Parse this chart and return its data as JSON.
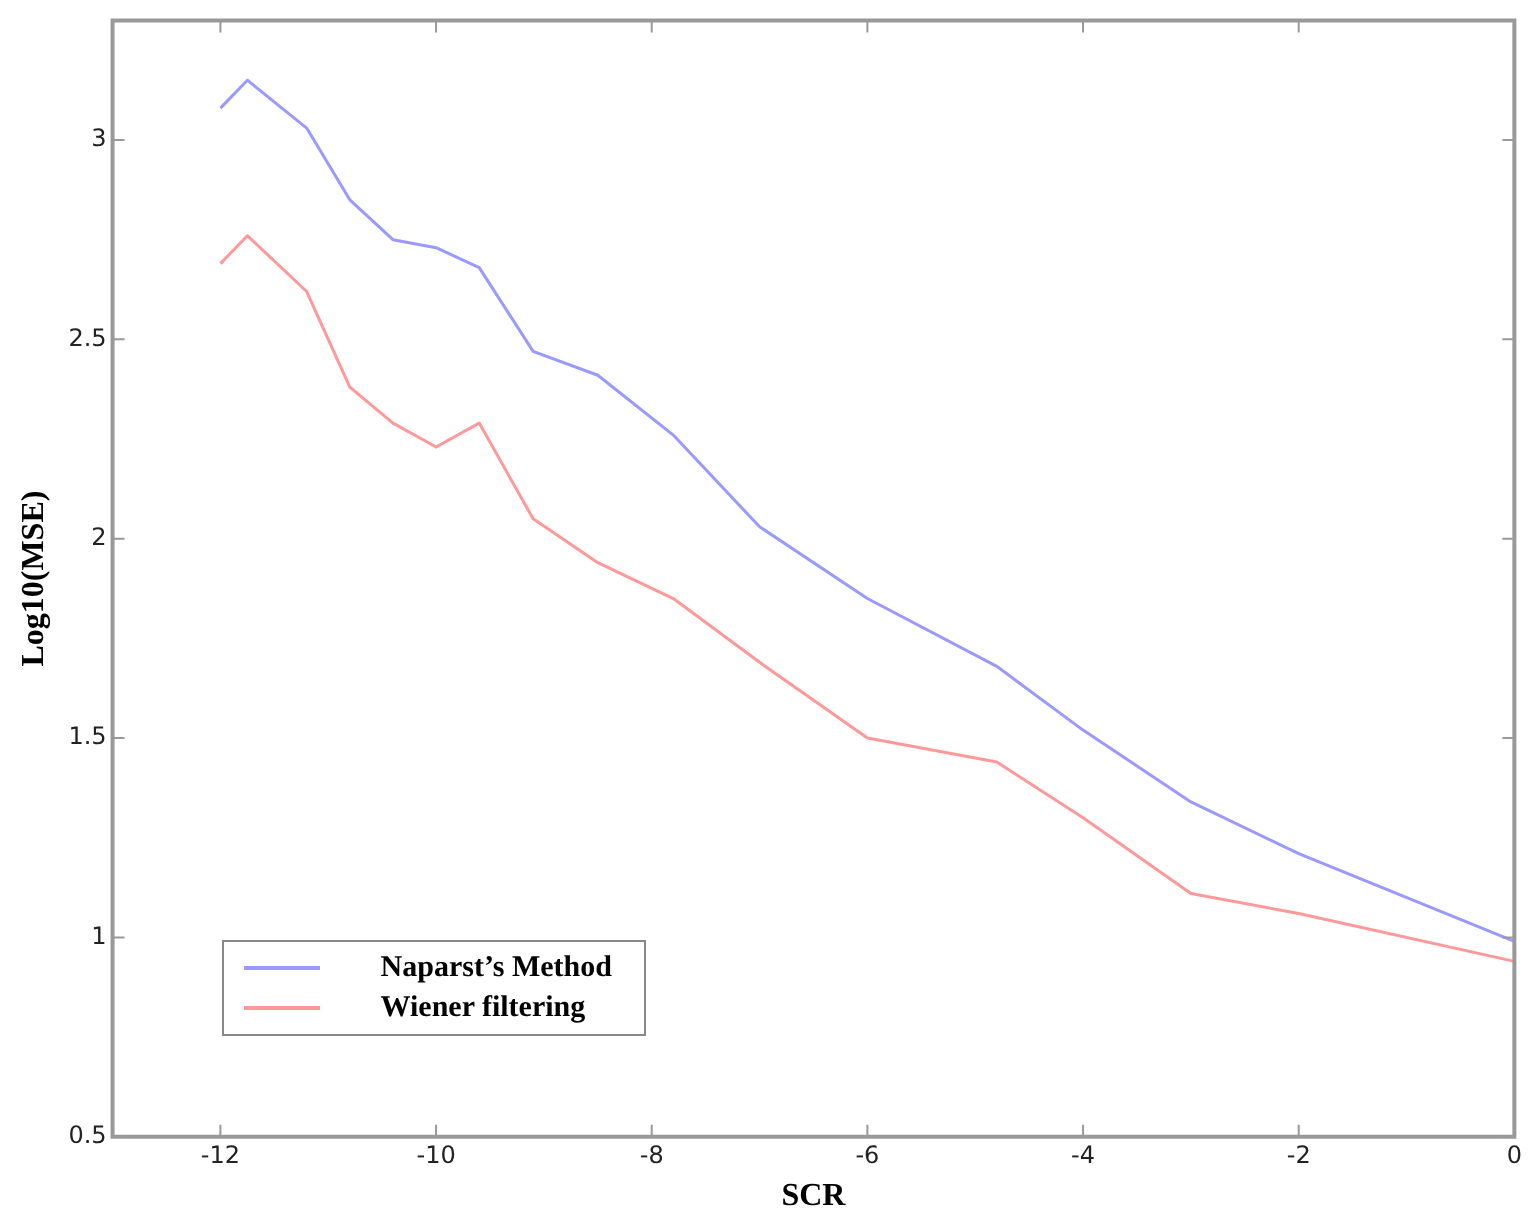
{
  "chart_data": {
    "type": "line",
    "xlabel": "SCR",
    "ylabel": "Log10(MSE)",
    "xlim": [
      -13,
      0
    ],
    "xticks": [
      -12,
      -10,
      -8,
      -6,
      -4,
      -2,
      0
    ],
    "ylim": [
      0.5,
      3.3
    ],
    "yticks": [
      0.5,
      1,
      1.5,
      2,
      2.5,
      3
    ],
    "grid": false,
    "legend": "bottom left",
    "marker": "none",
    "line_style": "solid",
    "x": [
      -12,
      -11.75,
      -11.2,
      -10.8,
      -10.4,
      -10,
      -9.6,
      -9.1,
      -8.5,
      -7.8,
      -7,
      -6,
      -4.8,
      -4,
      -3,
      -2,
      0
    ],
    "series": [
      {
        "name": "Naparst’s Method",
        "color": "#9999ff",
        "values": [
          3.08,
          3.15,
          3.03,
          2.85,
          2.75,
          2.73,
          2.68,
          2.47,
          2.41,
          2.26,
          2.03,
          1.85,
          1.68,
          1.52,
          1.34,
          1.21,
          0.99
        ]
      },
      {
        "name": "Wiener filtering",
        "color": "#ff9999",
        "values": [
          2.69,
          2.76,
          2.62,
          2.38,
          2.29,
          2.23,
          2.29,
          2.05,
          1.94,
          1.85,
          1.69,
          1.5,
          1.44,
          1.3,
          1.11,
          1.06,
          0.94
        ]
      }
    ]
  }
}
